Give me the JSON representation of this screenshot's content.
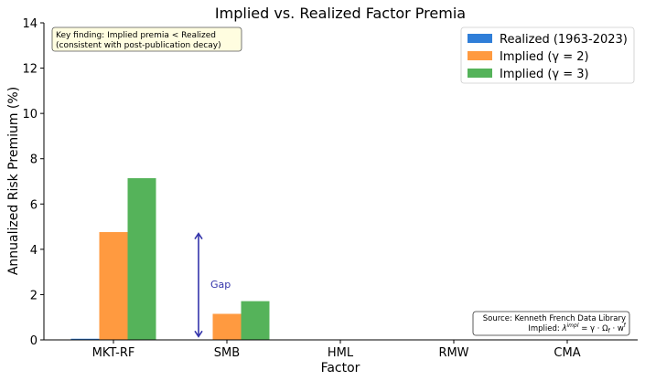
{
  "chart_data": {
    "type": "bar",
    "title": "Implied vs. Realized Factor Premia",
    "xlabel": "Factor",
    "ylabel": "Annualized Risk Premium (%)",
    "ylim": [
      0,
      14
    ],
    "yticks": [
      "0",
      "2",
      "4",
      "6",
      "8",
      "10",
      "12",
      "14"
    ],
    "categories": [
      "MKT-RF",
      "SMB",
      "HML",
      "RMW",
      "CMA"
    ],
    "series": [
      {
        "name": "Realized (1963-2023)",
        "color": "#2f7ed8",
        "values": [
          0.05,
          0.01,
          0.02,
          0.02,
          0.01
        ]
      },
      {
        "name": "Implied (γ = 2)",
        "color": "#ff9a40",
        "values": [
          4.76,
          1.15,
          0,
          0,
          0
        ]
      },
      {
        "name": "Implied (γ = 3)",
        "color": "#55b35a",
        "values": [
          7.14,
          1.71,
          0,
          0,
          0
        ]
      }
    ],
    "legend_position": "top-right",
    "grid": false,
    "annotations": {
      "key_finding": [
        "Key finding: Implied premia < Realized",
        "(consistent with post-publication decay)"
      ],
      "gap_label": "Gap",
      "gap_arrow": {
        "from": 0.15,
        "to": 4.7,
        "color": "#3333aa"
      },
      "source": [
        "Source: Kenneth French Data Library",
        "Implied: λ^impl = γ · Ω_f · w^f"
      ]
    }
  }
}
